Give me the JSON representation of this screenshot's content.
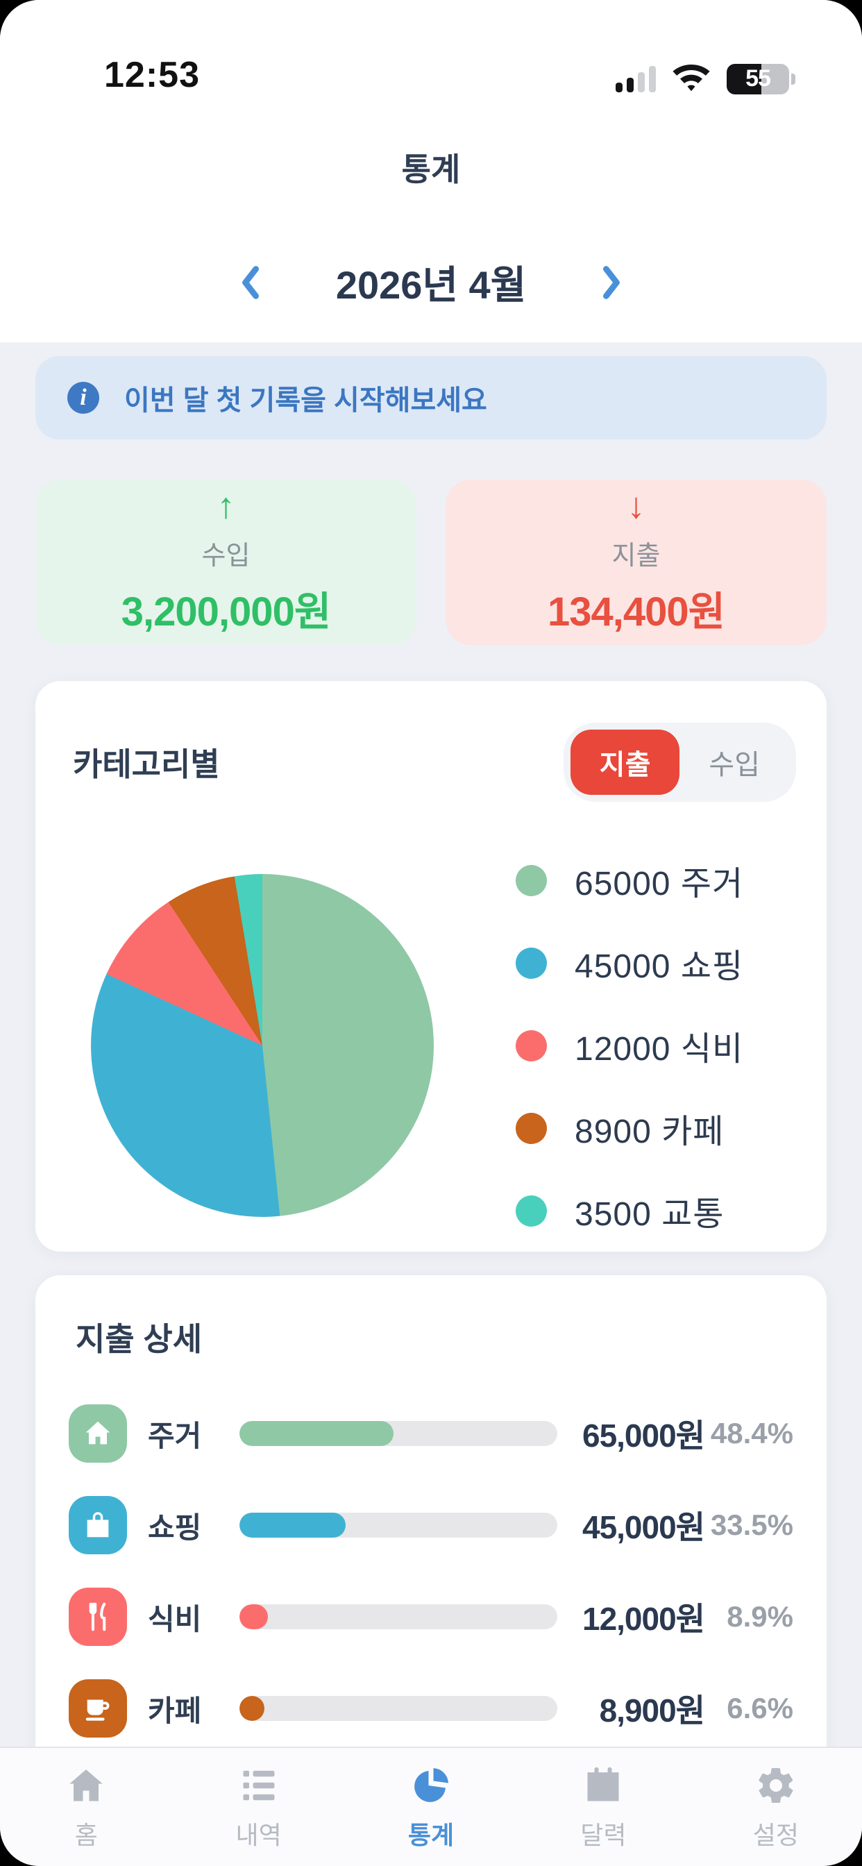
{
  "status_bar": {
    "time": "12:53",
    "battery_percent": "55"
  },
  "header": {
    "title": "통계"
  },
  "month_nav": {
    "label": "2026년 4월"
  },
  "banner": {
    "text": "이번 달 첫 기록을 시작해보세요"
  },
  "summary": {
    "income": {
      "arrow": "↑",
      "label": "수입",
      "amount": "3,200,000원",
      "color": "#2fbf66",
      "bg": "#e5f5eb"
    },
    "expense": {
      "arrow": "↓",
      "label": "지출",
      "amount": "134,400원",
      "color": "#e8503f",
      "bg": "#fce5e3"
    }
  },
  "category_section": {
    "title": "카테고리별",
    "toggle": {
      "expense_label": "지출",
      "income_label": "수입",
      "selected": "expense"
    },
    "legend": [
      {
        "label": "65000 주거",
        "color": "#8fc8a5"
      },
      {
        "label": "45000 쇼핑",
        "color": "#3fb2d3"
      },
      {
        "label": "12000 식비",
        "color": "#fb6d6d"
      },
      {
        "label": "8900 카페",
        "color": "#c8641c"
      },
      {
        "label": "3500 교통",
        "color": "#49d0bd"
      }
    ]
  },
  "chart_data": {
    "type": "pie",
    "title": "카테고리별 지출",
    "labels": [
      "주거",
      "쇼핑",
      "식비",
      "카페",
      "교통"
    ],
    "values": [
      65000,
      45000,
      12000,
      8900,
      3500
    ],
    "percents": [
      48.4,
      33.5,
      8.9,
      6.6,
      2.6
    ],
    "colors": [
      "#8fc8a5",
      "#3fb2d3",
      "#fb6d6d",
      "#c8641c",
      "#49d0bd"
    ],
    "legend_position": "right",
    "start_angle_deg": 0,
    "direction": "clockwise"
  },
  "detail_section": {
    "title": "지출 상세",
    "rows": [
      {
        "icon": "house-icon",
        "label": "주거",
        "amount": "65,000원",
        "percent": "48.4%",
        "pct": 48.4,
        "color": "#8fc8a5"
      },
      {
        "icon": "shopping-bag-icon",
        "label": "쇼핑",
        "amount": "45,000원",
        "percent": "33.5%",
        "pct": 33.5,
        "color": "#3fb2d3"
      },
      {
        "icon": "utensils-icon",
        "label": "식비",
        "amount": "12,000원",
        "percent": "8.9%",
        "pct": 8.9,
        "color": "#fb6d6d"
      },
      {
        "icon": "coffee-icon",
        "label": "카페",
        "amount": "8,900원",
        "percent": "6.6%",
        "pct": 6.6,
        "color": "#c8641c"
      }
    ]
  },
  "tab_bar": {
    "active_color": "#4a90d9",
    "inactive_color": "#b6bbc3",
    "items": [
      {
        "label": "홈",
        "icon": "home-icon",
        "active": false
      },
      {
        "label": "내역",
        "icon": "list-icon",
        "active": false
      },
      {
        "label": "통계",
        "icon": "pie-chart-icon",
        "active": true
      },
      {
        "label": "달력",
        "icon": "calendar-icon",
        "active": false
      },
      {
        "label": "설정",
        "icon": "gear-icon",
        "active": false
      }
    ]
  }
}
